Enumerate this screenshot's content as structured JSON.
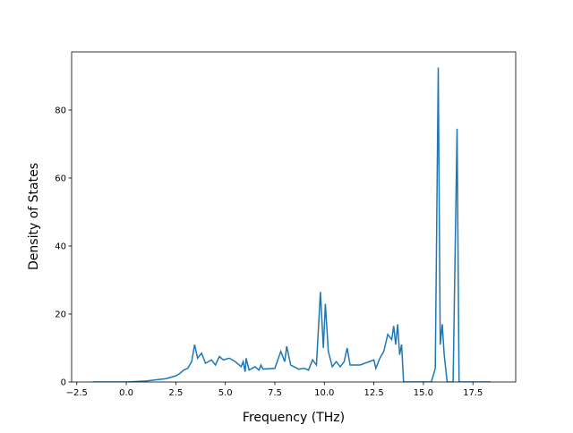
{
  "chart_data": {
    "type": "line",
    "xlabel": "Frequency (THz)",
    "ylabel": "Density of States",
    "xlim": [
      -2.76,
      19.66
    ],
    "ylim": [
      0,
      97.1
    ],
    "xticks": [
      {
        "value": -2.5,
        "label": "−2.5"
      },
      {
        "value": 0,
        "label": "0.0"
      },
      {
        "value": 2.5,
        "label": "2.5"
      },
      {
        "value": 5,
        "label": "5.0"
      },
      {
        "value": 7.5,
        "label": "7.5"
      },
      {
        "value": 10,
        "label": "10.0"
      },
      {
        "value": 12.5,
        "label": "12.5"
      },
      {
        "value": 15,
        "label": "15.0"
      },
      {
        "value": 17.5,
        "label": "17.5"
      }
    ],
    "yticks": [
      0,
      20,
      40,
      60,
      80
    ],
    "series": [
      {
        "color": "#1f77b4",
        "x": [
          -1.7,
          0,
          1,
          2,
          2.5,
          2.7,
          2.9,
          3.1,
          3.3,
          3.45,
          3.6,
          3.8,
          4.0,
          4.3,
          4.5,
          4.7,
          4.9,
          5.2,
          5.5,
          5.8,
          5.9,
          6.0,
          6.05,
          6.2,
          6.5,
          6.7,
          6.8,
          6.9,
          7.5,
          7.8,
          8.0,
          8.1,
          8.3,
          8.7,
          9.0,
          9.2,
          9.4,
          9.6,
          9.8,
          9.95,
          10.05,
          10.2,
          10.4,
          10.6,
          10.8,
          11.0,
          11.15,
          11.3,
          11.8,
          12.5,
          12.6,
          12.8,
          13.0,
          13.2,
          13.4,
          13.5,
          13.6,
          13.7,
          13.8,
          13.9,
          14.0,
          15.4,
          15.6,
          15.75,
          15.85,
          15.95,
          16.05,
          16.2,
          16.5,
          16.7,
          16.8,
          18.4
        ],
        "values": [
          0,
          0,
          0.3,
          1.0,
          1.8,
          2.5,
          3.5,
          4,
          6,
          11,
          7,
          8.5,
          5.5,
          6.5,
          5,
          7.5,
          6.5,
          7,
          6,
          4.5,
          6,
          3,
          7,
          3.5,
          4.5,
          3.5,
          5,
          3.8,
          4,
          9,
          6,
          10.5,
          5,
          3.8,
          4,
          3.5,
          6.5,
          5,
          26.5,
          10,
          23,
          9,
          4.5,
          6,
          4.5,
          6,
          10,
          5,
          5,
          6.5,
          4,
          7,
          9,
          14,
          12.5,
          16.5,
          11,
          17,
          8,
          11,
          0,
          0,
          4,
          92.5,
          11,
          17,
          8,
          0,
          0,
          74.5,
          0,
          0
        ]
      }
    ]
  }
}
